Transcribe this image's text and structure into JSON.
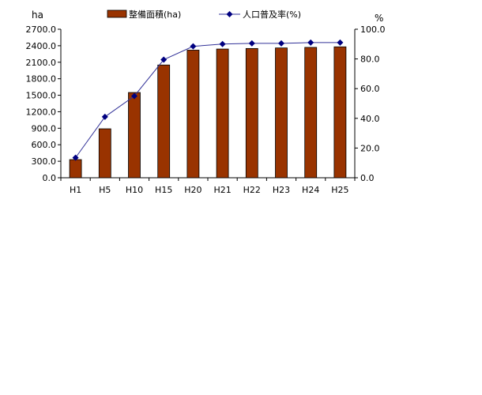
{
  "chart_data": {
    "type": "bar",
    "categories": [
      "H1",
      "H5",
      "H10",
      "H15",
      "H20",
      "H21",
      "H22",
      "H23",
      "H24",
      "H25"
    ],
    "series": [
      {
        "name": "整備面積(ha)",
        "type": "bar",
        "axis": "left",
        "color": "#993300",
        "values": [
          330,
          890,
          1550,
          2050,
          2320,
          2340,
          2350,
          2360,
          2370,
          2380
        ]
      },
      {
        "name": "人口普及率(%)",
        "type": "line",
        "axis": "right",
        "color": "#000080",
        "line_color": "#333399",
        "values": [
          13.5,
          41,
          55,
          79.5,
          88.5,
          90,
          90.5,
          90.5,
          91,
          91
        ]
      }
    ],
    "left_axis": {
      "unit": "ha",
      "ylim": [
        0,
        2700
      ],
      "ticks": [
        "0.0",
        "300.0",
        "600.0",
        "900.0",
        "1200.0",
        "1500.0",
        "1800.0",
        "2100.0",
        "2400.0",
        "2700.0"
      ]
    },
    "right_axis": {
      "unit": "%",
      "ylim": [
        0,
        100
      ],
      "ticks": [
        "0.0",
        "20.0",
        "40.0",
        "60.0",
        "80.0",
        "100.0"
      ]
    },
    "grid": false,
    "legend_position": "top"
  }
}
